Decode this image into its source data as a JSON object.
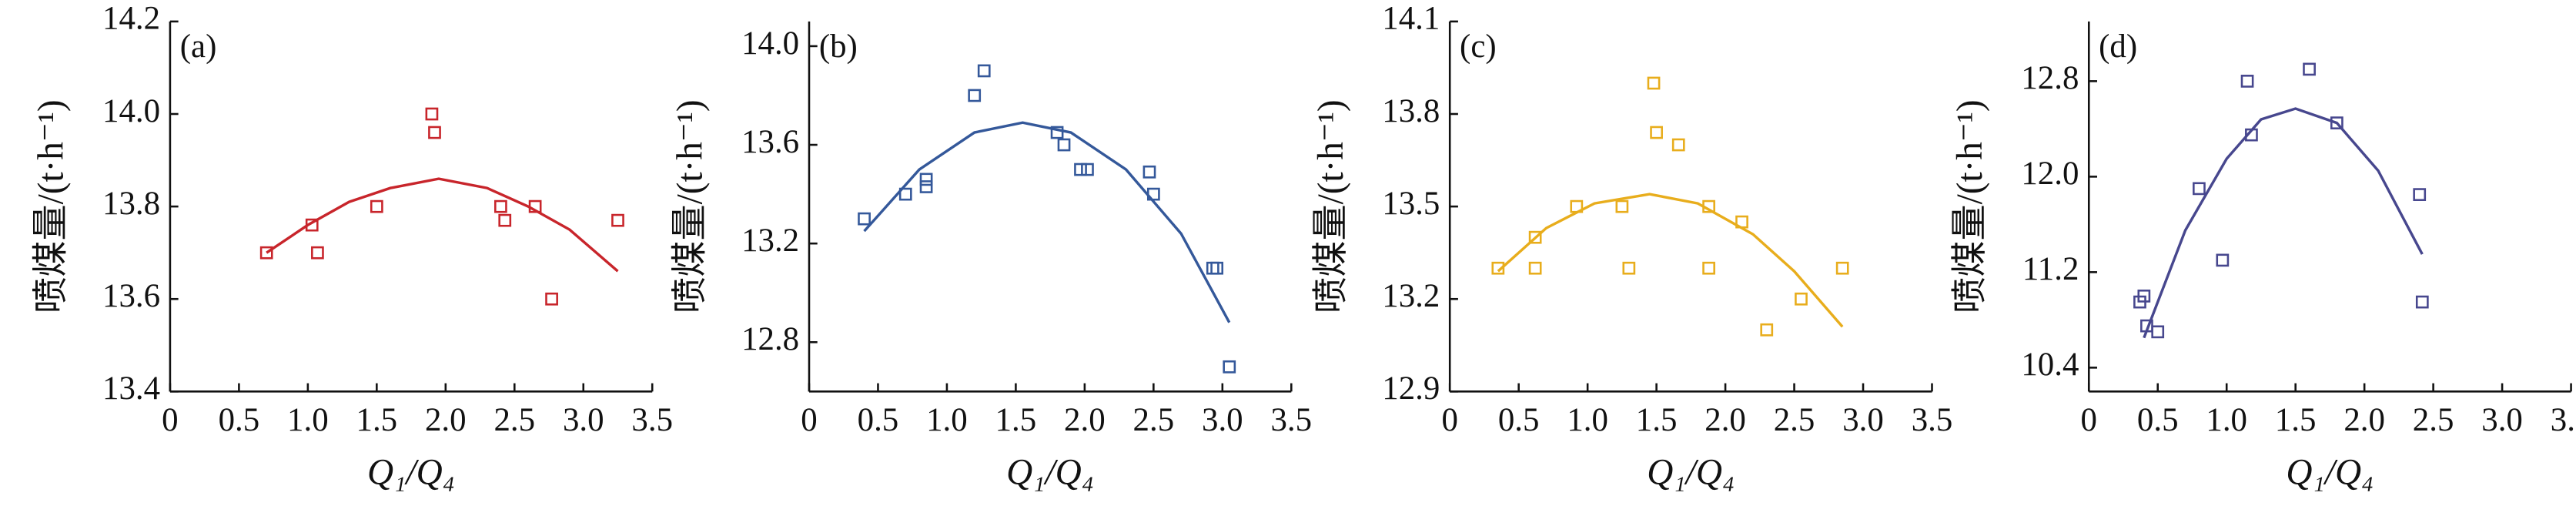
{
  "chart_data": [
    {
      "type": "scatter",
      "panel_label": "(a)",
      "xlabel": "Q₁/Q₄",
      "ylabel": "喷煤量/(t·h⁻¹)",
      "color": "#c8252b",
      "x": [
        0.7,
        1.03,
        1.07,
        1.5,
        1.9,
        1.92,
        2.4,
        2.43,
        2.65,
        2.77,
        3.25
      ],
      "values": [
        13.7,
        13.76,
        13.7,
        13.8,
        14.0,
        13.96,
        13.8,
        13.77,
        13.8,
        13.6,
        13.77
      ],
      "fit": {
        "x": [
          0.7,
          1.0,
          1.3,
          1.6,
          1.95,
          2.3,
          2.6,
          2.9,
          3.25
        ],
        "values": [
          13.7,
          13.76,
          13.81,
          13.84,
          13.86,
          13.84,
          13.8,
          13.75,
          13.66
        ]
      },
      "xlim": [
        0,
        3.5
      ],
      "ylim": [
        13.4,
        14.2
      ],
      "xticks": [
        0,
        0.5,
        {
          "value": 1,
          "label": "1.0"
        },
        1.5,
        {
          "value": 2,
          "label": "2.0"
        },
        2.5,
        {
          "value": 3,
          "label": "3.0"
        },
        3.5
      ],
      "yticks": [
        13.4,
        13.6,
        13.8,
        {
          "value": 14,
          "label": "14.0"
        },
        14.2
      ]
    },
    {
      "type": "scatter",
      "panel_label": "(b)",
      "xlabel": "Q₁/Q₄",
      "ylabel": "喷煤量/(t·h⁻¹)",
      "color": "#34589a",
      "x": [
        0.4,
        0.7,
        0.85,
        0.85,
        1.2,
        1.27,
        1.8,
        1.85,
        1.97,
        2.02,
        2.47,
        2.5,
        2.93,
        2.96,
        3.05
      ],
      "values": [
        13.3,
        13.4,
        13.43,
        13.46,
        13.8,
        13.9,
        13.65,
        13.6,
        13.5,
        13.5,
        13.49,
        13.4,
        13.1,
        13.1,
        12.7
      ],
      "fit": {
        "x": [
          0.4,
          0.8,
          1.2,
          1.55,
          1.9,
          2.3,
          2.7,
          3.05
        ],
        "values": [
          13.25,
          13.5,
          13.65,
          13.69,
          13.65,
          13.5,
          13.24,
          12.88
        ]
      },
      "xlim": [
        0,
        3.5
      ],
      "ylim": [
        12.6,
        14.1
      ],
      "xticks": [
        0,
        0.5,
        {
          "value": 1,
          "label": "1.0"
        },
        1.5,
        {
          "value": 2,
          "label": "2.0"
        },
        2.5,
        {
          "value": 3,
          "label": "3.0"
        },
        3.5
      ],
      "yticks": [
        12.8,
        13.2,
        13.6,
        {
          "value": 14,
          "label": "14.0"
        }
      ]
    },
    {
      "type": "scatter",
      "panel_label": "(c)",
      "xlabel": "Q₁/Q₄",
      "ylabel": "喷煤量/(t·h⁻¹)",
      "color": "#e8ad1c",
      "x": [
        0.35,
        0.62,
        0.62,
        0.92,
        1.25,
        1.3,
        1.48,
        1.5,
        1.66,
        1.88,
        1.88,
        2.12,
        2.3,
        2.55,
        2.85
      ],
      "values": [
        13.3,
        13.4,
        13.3,
        13.5,
        13.5,
        13.3,
        13.9,
        13.74,
        13.7,
        13.5,
        13.3,
        13.45,
        13.1,
        13.2,
        13.3
      ],
      "fit": {
        "x": [
          0.35,
          0.7,
          1.05,
          1.45,
          1.8,
          2.2,
          2.5,
          2.85
        ],
        "values": [
          13.29,
          13.43,
          13.51,
          13.54,
          13.51,
          13.41,
          13.29,
          13.11
        ]
      },
      "xlim": [
        0,
        3.5
      ],
      "ylim": [
        12.9,
        14.1
      ],
      "xticks": [
        0,
        0.5,
        {
          "value": 1,
          "label": "1.0"
        },
        1.5,
        {
          "value": 2,
          "label": "2.0"
        },
        2.5,
        {
          "value": 3,
          "label": "3.0"
        },
        3.5
      ],
      "yticks": [
        12.9,
        13.2,
        13.5,
        13.8,
        14.1
      ]
    },
    {
      "type": "scatter",
      "panel_label": "(d)",
      "xlabel": "Q₁/Q₄",
      "ylabel": "喷煤量/(t·h⁻¹)",
      "color": "#47478e",
      "x": [
        0.37,
        0.4,
        0.42,
        0.5,
        0.8,
        0.97,
        1.15,
        1.18,
        1.6,
        1.8,
        2.4,
        2.42
      ],
      "values": [
        10.95,
        11.0,
        10.75,
        10.7,
        11.9,
        11.3,
        12.8,
        12.35,
        12.9,
        12.45,
        11.85,
        10.95
      ],
      "fit": {
        "x": [
          0.4,
          0.7,
          1.0,
          1.25,
          1.5,
          1.8,
          2.1,
          2.42
        ],
        "values": [
          10.65,
          11.55,
          12.15,
          12.48,
          12.57,
          12.45,
          12.05,
          11.35
        ]
      },
      "xlim": [
        0,
        3.5
      ],
      "ylim": [
        10.2,
        13.3
      ],
      "xticks": [
        0,
        0.5,
        {
          "value": 1,
          "label": "1.0"
        },
        1.5,
        {
          "value": 2,
          "label": "2.0"
        },
        2.5,
        {
          "value": 3,
          "label": "3.0"
        },
        3.5
      ],
      "yticks": [
        10.4,
        11.2,
        {
          "value": 12,
          "label": "12.0"
        },
        12.8
      ]
    }
  ]
}
